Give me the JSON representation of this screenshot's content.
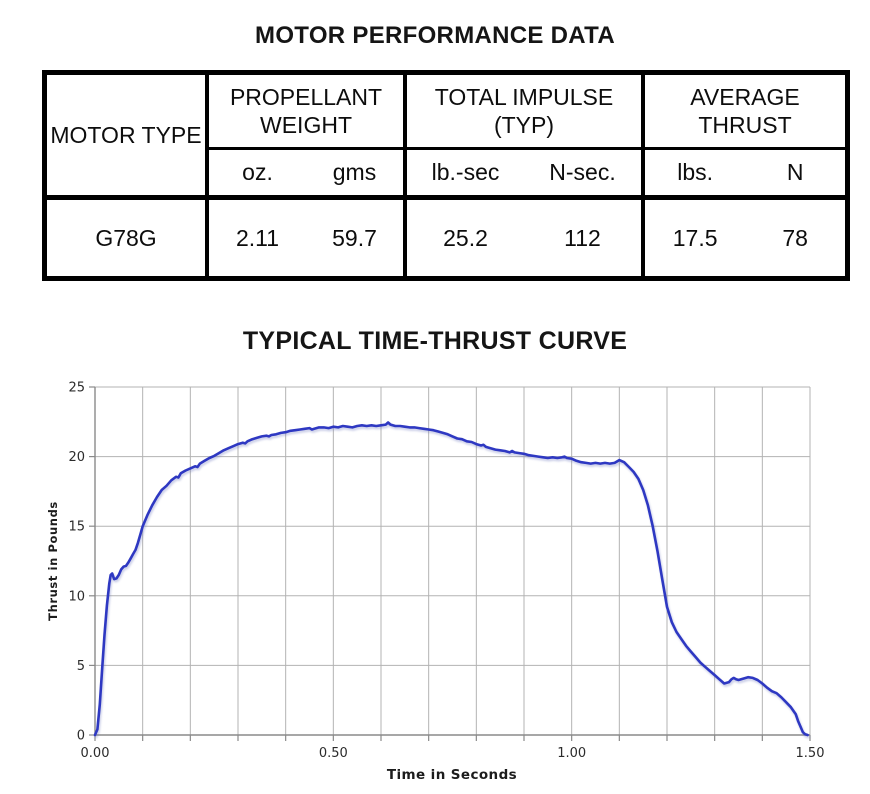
{
  "table_section": {
    "title": "MOTOR PERFORMANCE DATA",
    "motor_type_header": "MOTOR TYPE",
    "groups": [
      {
        "label": "PROPELLANT WEIGHT",
        "units": [
          "oz.",
          "gms"
        ]
      },
      {
        "label": "TOTAL IMPULSE (TYP)",
        "units": [
          "lb.-sec",
          "N-sec."
        ]
      },
      {
        "label": "AVERAGE THRUST",
        "units": [
          "lbs.",
          "N"
        ]
      }
    ],
    "row": {
      "motor_type": "G78G",
      "values": [
        "2.11",
        "59.7",
        "25.2",
        "112",
        "17.5",
        "78"
      ]
    }
  },
  "chart_data": {
    "type": "line",
    "title": "TYPICAL TIME-THRUST CURVE",
    "xlabel": "Time in Seconds",
    "ylabel": "Thrust in Pounds",
    "xlim": [
      0,
      1.5
    ],
    "ylim": [
      0,
      25
    ],
    "x_grid_step": 0.1,
    "y_grid_step": 5,
    "grid": true,
    "x_ticks": [
      0,
      0.5,
      1.0,
      1.5
    ],
    "x_tick_labels": [
      "0.00",
      "0.50",
      "1.00",
      "1.50"
    ],
    "y_ticks": [
      0,
      5,
      10,
      15,
      20,
      25
    ],
    "y_tick_labels": [
      "0",
      "5",
      "10",
      "15",
      "20",
      "25"
    ],
    "line_color": "#2e38c2",
    "grid_color": "#b3b3b3",
    "axis_color": "#8a8a8a",
    "series": [
      {
        "name": "Thrust",
        "points": [
          [
            0.0,
            0
          ],
          [
            0.005,
            0.4
          ],
          [
            0.01,
            2.2
          ],
          [
            0.015,
            4.8
          ],
          [
            0.02,
            7.2
          ],
          [
            0.025,
            9.3
          ],
          [
            0.03,
            10.9
          ],
          [
            0.033,
            11.5
          ],
          [
            0.036,
            11.6
          ],
          [
            0.04,
            11.2
          ],
          [
            0.045,
            11.25
          ],
          [
            0.05,
            11.5
          ],
          [
            0.055,
            11.9
          ],
          [
            0.06,
            12.1
          ],
          [
            0.065,
            12.15
          ],
          [
            0.07,
            12.4
          ],
          [
            0.075,
            12.7
          ],
          [
            0.08,
            13.0
          ],
          [
            0.085,
            13.3
          ],
          [
            0.09,
            13.8
          ],
          [
            0.095,
            14.4
          ],
          [
            0.1,
            15.0
          ],
          [
            0.11,
            15.8
          ],
          [
            0.12,
            16.5
          ],
          [
            0.13,
            17.1
          ],
          [
            0.14,
            17.6
          ],
          [
            0.15,
            17.9
          ],
          [
            0.16,
            18.3
          ],
          [
            0.17,
            18.55
          ],
          [
            0.175,
            18.5
          ],
          [
            0.18,
            18.8
          ],
          [
            0.19,
            19.0
          ],
          [
            0.2,
            19.15
          ],
          [
            0.21,
            19.3
          ],
          [
            0.215,
            19.25
          ],
          [
            0.22,
            19.5
          ],
          [
            0.23,
            19.7
          ],
          [
            0.24,
            19.9
          ],
          [
            0.25,
            20.05
          ],
          [
            0.26,
            20.25
          ],
          [
            0.27,
            20.45
          ],
          [
            0.28,
            20.6
          ],
          [
            0.29,
            20.75
          ],
          [
            0.3,
            20.9
          ],
          [
            0.31,
            21.0
          ],
          [
            0.315,
            20.95
          ],
          [
            0.32,
            21.1
          ],
          [
            0.33,
            21.25
          ],
          [
            0.34,
            21.35
          ],
          [
            0.35,
            21.45
          ],
          [
            0.36,
            21.5
          ],
          [
            0.365,
            21.45
          ],
          [
            0.37,
            21.55
          ],
          [
            0.38,
            21.6
          ],
          [
            0.39,
            21.7
          ],
          [
            0.4,
            21.75
          ],
          [
            0.41,
            21.85
          ],
          [
            0.42,
            21.9
          ],
          [
            0.43,
            21.95
          ],
          [
            0.44,
            22.0
          ],
          [
            0.45,
            22.05
          ],
          [
            0.455,
            21.95
          ],
          [
            0.46,
            22.0
          ],
          [
            0.47,
            22.1
          ],
          [
            0.48,
            22.1
          ],
          [
            0.49,
            22.05
          ],
          [
            0.5,
            22.15
          ],
          [
            0.51,
            22.1
          ],
          [
            0.52,
            22.2
          ],
          [
            0.53,
            22.15
          ],
          [
            0.54,
            22.1
          ],
          [
            0.55,
            22.2
          ],
          [
            0.56,
            22.25
          ],
          [
            0.57,
            22.2
          ],
          [
            0.58,
            22.25
          ],
          [
            0.59,
            22.2
          ],
          [
            0.6,
            22.25
          ],
          [
            0.61,
            22.3
          ],
          [
            0.615,
            22.45
          ],
          [
            0.62,
            22.3
          ],
          [
            0.63,
            22.2
          ],
          [
            0.64,
            22.2
          ],
          [
            0.65,
            22.15
          ],
          [
            0.66,
            22.1
          ],
          [
            0.67,
            22.1
          ],
          [
            0.68,
            22.05
          ],
          [
            0.69,
            22.0
          ],
          [
            0.7,
            21.95
          ],
          [
            0.71,
            21.9
          ],
          [
            0.72,
            21.8
          ],
          [
            0.73,
            21.7
          ],
          [
            0.74,
            21.6
          ],
          [
            0.75,
            21.45
          ],
          [
            0.76,
            21.3
          ],
          [
            0.77,
            21.25
          ],
          [
            0.78,
            21.1
          ],
          [
            0.79,
            21.05
          ],
          [
            0.8,
            20.9
          ],
          [
            0.81,
            20.8
          ],
          [
            0.815,
            20.85
          ],
          [
            0.82,
            20.7
          ],
          [
            0.83,
            20.6
          ],
          [
            0.84,
            20.5
          ],
          [
            0.85,
            20.45
          ],
          [
            0.86,
            20.4
          ],
          [
            0.87,
            20.3
          ],
          [
            0.875,
            20.4
          ],
          [
            0.88,
            20.3
          ],
          [
            0.89,
            20.25
          ],
          [
            0.9,
            20.2
          ],
          [
            0.91,
            20.1
          ],
          [
            0.92,
            20.05
          ],
          [
            0.93,
            20.0
          ],
          [
            0.94,
            19.95
          ],
          [
            0.95,
            19.9
          ],
          [
            0.96,
            19.95
          ],
          [
            0.97,
            19.9
          ],
          [
            0.98,
            19.95
          ],
          [
            0.985,
            20.0
          ],
          [
            0.99,
            19.9
          ],
          [
            1.0,
            19.85
          ],
          [
            1.01,
            19.7
          ],
          [
            1.02,
            19.6
          ],
          [
            1.03,
            19.55
          ],
          [
            1.04,
            19.5
          ],
          [
            1.05,
            19.55
          ],
          [
            1.06,
            19.5
          ],
          [
            1.07,
            19.55
          ],
          [
            1.08,
            19.5
          ],
          [
            1.09,
            19.55
          ],
          [
            1.1,
            19.75
          ],
          [
            1.11,
            19.6
          ],
          [
            1.12,
            19.25
          ],
          [
            1.13,
            18.9
          ],
          [
            1.14,
            18.4
          ],
          [
            1.15,
            17.6
          ],
          [
            1.16,
            16.5
          ],
          [
            1.17,
            15.0
          ],
          [
            1.18,
            13.2
          ],
          [
            1.19,
            11.2
          ],
          [
            1.2,
            9.2
          ],
          [
            1.21,
            8.1
          ],
          [
            1.22,
            7.4
          ],
          [
            1.23,
            6.9
          ],
          [
            1.24,
            6.4
          ],
          [
            1.25,
            6.0
          ],
          [
            1.26,
            5.6
          ],
          [
            1.27,
            5.2
          ],
          [
            1.28,
            4.9
          ],
          [
            1.29,
            4.6
          ],
          [
            1.3,
            4.3
          ],
          [
            1.31,
            4.0
          ],
          [
            1.32,
            3.7
          ],
          [
            1.33,
            3.8
          ],
          [
            1.335,
            4.0
          ],
          [
            1.34,
            4.1
          ],
          [
            1.345,
            4.0
          ],
          [
            1.35,
            3.95
          ],
          [
            1.36,
            4.05
          ],
          [
            1.37,
            4.15
          ],
          [
            1.38,
            4.1
          ],
          [
            1.39,
            3.95
          ],
          [
            1.4,
            3.7
          ],
          [
            1.41,
            3.4
          ],
          [
            1.42,
            3.15
          ],
          [
            1.43,
            3.0
          ],
          [
            1.44,
            2.7
          ],
          [
            1.45,
            2.35
          ],
          [
            1.46,
            2.0
          ],
          [
            1.47,
            1.5
          ],
          [
            1.475,
            1.0
          ],
          [
            1.48,
            0.6
          ],
          [
            1.485,
            0.2
          ],
          [
            1.49,
            0.05
          ],
          [
            1.495,
            0
          ]
        ]
      }
    ]
  }
}
